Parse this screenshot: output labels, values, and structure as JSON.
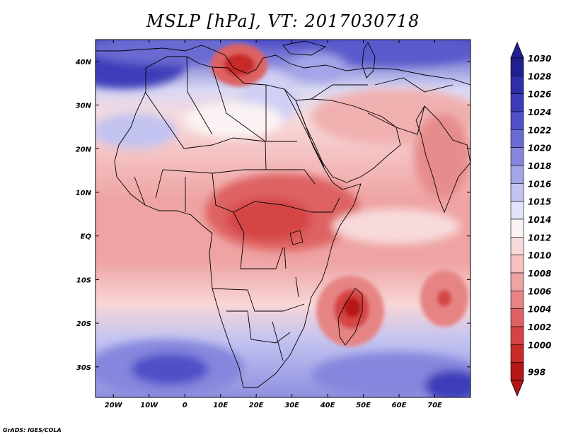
{
  "title": "MSLP [hPa], VT: 2017030718",
  "credit": "GrADS: IGES/COLA",
  "map": {
    "lon_range": [
      -25,
      80
    ],
    "lat_range": [
      -37,
      45
    ],
    "x_ticks": [
      "20W",
      "10W",
      "0",
      "10E",
      "20E",
      "30E",
      "40E",
      "50E",
      "60E",
      "70E"
    ],
    "x_tick_lons": [
      -20,
      -10,
      0,
      10,
      20,
      30,
      40,
      50,
      60,
      70
    ],
    "y_ticks": [
      "40N",
      "30N",
      "20N",
      "10N",
      "EQ",
      "10S",
      "20S",
      "30S"
    ],
    "y_tick_lats": [
      40,
      30,
      20,
      10,
      0,
      -10,
      -20,
      -30
    ]
  },
  "colorbar": {
    "levels": [
      "1030",
      "1028",
      "1026",
      "1024",
      "1022",
      "1020",
      "1018",
      "1016",
      "1015",
      "1014",
      "1012",
      "1010",
      "1008",
      "1006",
      "1004",
      "1002",
      "1000",
      "998"
    ],
    "colors": [
      "#1f1f8f",
      "#2e2ea8",
      "#3c3cb9",
      "#5050c8",
      "#6a6ad3",
      "#8686de",
      "#a4a4e8",
      "#c3c3f1",
      "#e3e3fa",
      "#fbf3f3",
      "#f8dada",
      "#f5c1c1",
      "#efa3a3",
      "#e68484",
      "#de6262",
      "#d54444",
      "#c82a2a",
      "#b51616"
    ]
  },
  "features": {
    "highs": [
      {
        "name": "north-africa-high",
        "lon": -20,
        "lat": 40,
        "value": 1026
      },
      {
        "name": "south-atlantic-high",
        "lon": -3,
        "lat": -30,
        "value": 1024
      },
      {
        "name": "south-indian-high",
        "lon": 58,
        "lat": -32,
        "value": 1020
      }
    ],
    "lows": [
      {
        "name": "mediterranean-low",
        "lon": 18,
        "lat": 40,
        "value": 1002
      },
      {
        "name": "madagascar-low",
        "lon": 48,
        "lat": -16,
        "value": 999
      },
      {
        "name": "indian-ocean-low",
        "lon": 73,
        "lat": -15,
        "value": 1004
      },
      {
        "name": "equatorial-africa-low",
        "lon": 25,
        "lat": 3,
        "value": 1006
      }
    ]
  }
}
